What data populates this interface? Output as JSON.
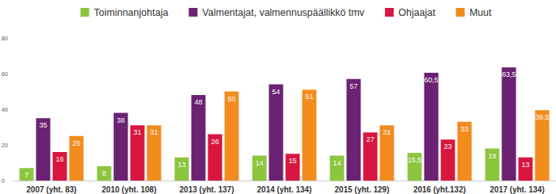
{
  "chart_data": {
    "type": "bar",
    "categories": [
      "2007 (yht. 83)",
      "2010 (yht. 108)",
      "2013 (yht. 137)",
      "2014 (yht. 134)",
      "2015 (yht. 129)",
      "2016 (yht.132)",
      "2017 (yht. 134)"
    ],
    "series": [
      {
        "name": "Toiminnanjohtaja",
        "color": "#8cc63e",
        "values": [
          7,
          8,
          13,
          14,
          14,
          15.5,
          18
        ],
        "value_labels": [
          "7",
          "8",
          "13",
          "14",
          "14",
          "15,5",
          "18"
        ]
      },
      {
        "name": "Valmentajat, valmennuspäällikkö tmv",
        "color": "#6b2273",
        "values": [
          35,
          38,
          48,
          54,
          57,
          60.5,
          63.5
        ],
        "value_labels": [
          "35",
          "38",
          "48",
          "54",
          "57",
          "60,5",
          "63,5"
        ]
      },
      {
        "name": "Ohjaajat",
        "color": "#d8163f",
        "values": [
          16,
          31,
          26,
          15,
          27,
          23,
          13
        ],
        "value_labels": [
          "16",
          "31",
          "26",
          "15",
          "27",
          "23",
          "13"
        ]
      },
      {
        "name": "Muut",
        "color": "#f28c1e",
        "values": [
          25,
          31,
          50,
          51,
          31,
          33,
          39.5
        ],
        "value_labels": [
          "25",
          "31",
          "50",
          "51",
          "31",
          "33",
          "39,5"
        ]
      }
    ],
    "ylim": [
      0,
      80
    ],
    "yticks": [
      0,
      20,
      40,
      60,
      80
    ],
    "grid": false,
    "legend": "top",
    "data_labels": true
  }
}
